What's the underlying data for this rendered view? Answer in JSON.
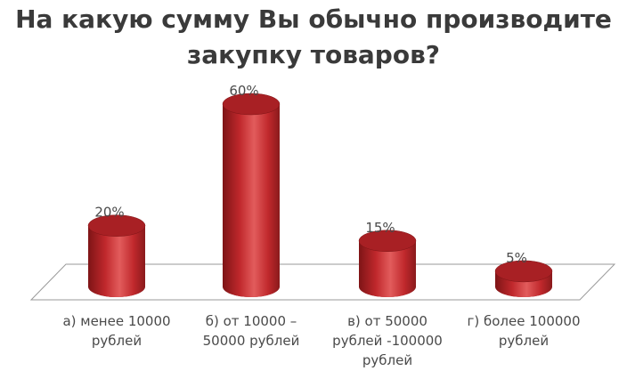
{
  "chart_data": {
    "type": "bar",
    "title_lines": [
      "На какую сумму Вы обычно производите",
      "закупку товаров?"
    ],
    "categories": [
      "а) менее 10000\nрублей",
      "б) от 10000 –\n50000 рублей",
      "в) от 50000\nрублей -100000\nрублей",
      "г) более 100000\nрублей"
    ],
    "values": [
      20,
      60,
      15,
      5
    ],
    "value_labels": [
      "20%",
      "60%",
      "15%",
      "5%"
    ],
    "unit": "%",
    "ylim": [
      0,
      60
    ],
    "grid": false,
    "legend": "none",
    "bar_style": "3d-cylinder",
    "colors": {
      "bar": "#c0282c",
      "bar_dark": "#7e1416",
      "bar_light": "#e25c5c",
      "bar_top": "#a82024",
      "floor_line": "#9a9a9a",
      "text": "#4a4a4a",
      "title": "#3a3a3a"
    }
  }
}
